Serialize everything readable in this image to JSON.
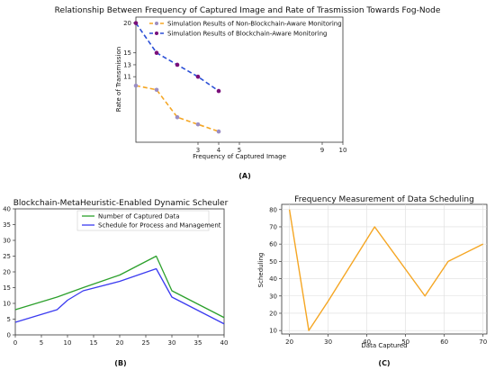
{
  "chart_data": [
    {
      "id": "A",
      "type": "line",
      "title": "Relationship Between Frequency of Captured Image and Rate of Trasmission Towards Fog-Node",
      "xlabel": "Frequency of Captured Image",
      "ylabel": "Rate of Transmission",
      "caption": "(A)",
      "xlim": [
        0,
        10
      ],
      "ylim": [
        0,
        21
      ],
      "xticks": [
        3,
        4,
        5,
        9,
        10
      ],
      "yticks": [
        11,
        13,
        15,
        20
      ],
      "grid": false,
      "legend_position": "top-center",
      "series": [
        {
          "name": "Simulation Results of Non-Blockchain-Aware Monitoring",
          "color": "#f5a623",
          "marker_color": "#9b8ec4",
          "x": [
            0,
            1,
            2,
            3,
            4
          ],
          "y": [
            9.5,
            8.8,
            4.2,
            3.0,
            1.8
          ]
        },
        {
          "name": "Simulation Results of Blockchain-Aware Monitoring",
          "color": "#2b4fd6",
          "marker_color": "#7a0f7a",
          "x": [
            0,
            1,
            2,
            3,
            4
          ],
          "y": [
            20,
            15,
            13,
            11,
            8.6
          ]
        }
      ]
    },
    {
      "id": "B",
      "type": "line",
      "title": "Blockchain-MetaHeuristic-Enabled Dynamic Scheuler",
      "xlabel": "",
      "ylabel": "",
      "caption": "(B)",
      "xlim": [
        0,
        40
      ],
      "ylim": [
        0,
        40
      ],
      "xticks": [
        0,
        5,
        10,
        15,
        20,
        25,
        30,
        35,
        40
      ],
      "yticks": [
        0,
        5,
        10,
        15,
        20,
        25,
        30,
        35,
        40
      ],
      "grid": false,
      "legend_position": "top-center",
      "series": [
        {
          "name": "Number of Captured Data",
          "color": "#2ca02c",
          "x": [
            0,
            8,
            13,
            20,
            27,
            30,
            40
          ],
          "y": [
            8,
            12,
            15,
            19,
            25,
            14,
            5.5
          ]
        },
        {
          "name": "Schedule for Process and Management",
          "color": "#3b3bf0",
          "x": [
            0,
            8,
            10,
            13,
            20,
            27,
            30,
            40
          ],
          "y": [
            4,
            8,
            11,
            14,
            17,
            21,
            12,
            3.5
          ]
        }
      ]
    },
    {
      "id": "C",
      "type": "line",
      "title": "Frequency Measurement of Data Scheduling",
      "xlabel": "Data Captured",
      "ylabel": "Scheduling",
      "caption": "(C)",
      "xlim": [
        18,
        71
      ],
      "ylim": [
        8,
        83
      ],
      "xticks": [
        20,
        30,
        40,
        50,
        60,
        70
      ],
      "yticks": [
        10,
        20,
        30,
        40,
        50,
        60,
        70,
        80
      ],
      "grid": true,
      "series": [
        {
          "name": "",
          "color": "#f5a623",
          "x": [
            20,
            25,
            30,
            42,
            55,
            61,
            70
          ],
          "y": [
            80,
            10,
            27,
            70,
            30,
            50,
            60
          ]
        }
      ]
    }
  ]
}
